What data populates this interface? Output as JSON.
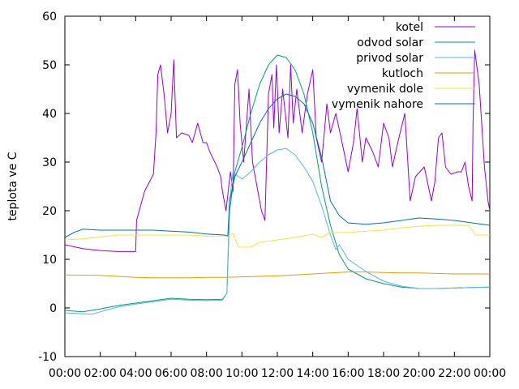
{
  "chart_data": {
    "type": "line",
    "title": "",
    "xlabel": "",
    "ylabel": "teplota ve C",
    "xlim": [
      "00:00",
      "24:00"
    ],
    "ylim": [
      -10,
      60
    ],
    "x_ticks": [
      "00:00",
      "02:00",
      "04:00",
      "06:00",
      "08:00",
      "10:00",
      "12:00",
      "14:00",
      "16:00",
      "18:00",
      "20:00",
      "22:00",
      "00:00"
    ],
    "y_ticks": [
      "-10",
      "0",
      "10",
      "20",
      "30",
      "40",
      "50",
      "60"
    ],
    "grid": false,
    "legend_position": "top-right",
    "x_unit": "hours",
    "series": [
      {
        "name": "kotel",
        "color": "#9400d3",
        "points": [
          [
            0,
            13
          ],
          [
            1,
            12.2
          ],
          [
            2,
            11.8
          ],
          [
            3,
            11.6
          ],
          [
            4,
            11.6
          ],
          [
            4.05,
            18
          ],
          [
            4.5,
            24
          ],
          [
            5,
            27.5
          ],
          [
            5.15,
            36
          ],
          [
            5.25,
            48
          ],
          [
            5.4,
            50
          ],
          [
            5.6,
            44
          ],
          [
            5.8,
            36
          ],
          [
            6,
            40
          ],
          [
            6.15,
            51
          ],
          [
            6.3,
            35
          ],
          [
            6.6,
            36
          ],
          [
            7,
            35.5
          ],
          [
            7.2,
            34
          ],
          [
            7.5,
            38
          ],
          [
            7.8,
            34
          ],
          [
            8,
            34
          ],
          [
            8.2,
            32
          ],
          [
            8.6,
            29
          ],
          [
            8.8,
            27
          ],
          [
            8.9,
            24
          ],
          [
            9.1,
            20
          ],
          [
            9.35,
            28
          ],
          [
            9.5,
            24
          ],
          [
            9.6,
            46
          ],
          [
            9.75,
            49
          ],
          [
            9.9,
            38
          ],
          [
            10.1,
            30
          ],
          [
            10.4,
            45
          ],
          [
            10.6,
            30
          ],
          [
            10.9,
            24
          ],
          [
            11.1,
            20
          ],
          [
            11.3,
            18
          ],
          [
            11.5,
            44
          ],
          [
            11.7,
            48
          ],
          [
            11.8,
            37
          ],
          [
            11.95,
            50
          ],
          [
            12.1,
            36
          ],
          [
            12.3,
            45
          ],
          [
            12.45,
            40
          ],
          [
            12.6,
            35
          ],
          [
            12.75,
            50
          ],
          [
            12.9,
            38
          ],
          [
            13.1,
            45
          ],
          [
            13.4,
            36
          ],
          [
            13.7,
            44
          ],
          [
            14,
            49
          ],
          [
            14.2,
            35
          ],
          [
            14.5,
            30
          ],
          [
            14.8,
            42
          ],
          [
            15,
            36
          ],
          [
            15.3,
            40
          ],
          [
            15.6,
            35
          ],
          [
            16,
            28
          ],
          [
            16.3,
            34
          ],
          [
            16.5,
            41
          ],
          [
            16.8,
            30
          ],
          [
            17,
            35
          ],
          [
            17.4,
            32
          ],
          [
            17.7,
            29
          ],
          [
            18,
            38
          ],
          [
            18.3,
            35
          ],
          [
            18.5,
            29
          ],
          [
            18.8,
            34
          ],
          [
            19.2,
            40
          ],
          [
            19.5,
            22
          ],
          [
            19.8,
            27
          ],
          [
            20.3,
            29
          ],
          [
            20.7,
            22
          ],
          [
            20.9,
            26
          ],
          [
            21.1,
            35
          ],
          [
            21.3,
            36
          ],
          [
            21.5,
            29
          ],
          [
            21.8,
            27.5
          ],
          [
            22.2,
            28
          ],
          [
            22.4,
            28
          ],
          [
            22.6,
            30
          ],
          [
            22.8,
            25
          ],
          [
            23.0,
            22
          ],
          [
            23.05,
            38
          ],
          [
            23.15,
            53
          ],
          [
            23.4,
            46
          ],
          [
            23.7,
            29
          ],
          [
            23.9,
            22
          ],
          [
            24.1,
            18
          ],
          [
            24.5,
            14
          ],
          [
            25,
            12
          ]
        ]
      },
      {
        "name": "odvod solar",
        "color": "#009e73",
        "points": [
          [
            0,
            -0.5
          ],
          [
            1,
            -0.8
          ],
          [
            2,
            -0.2
          ],
          [
            3,
            0.5
          ],
          [
            4,
            1
          ],
          [
            5,
            1.5
          ],
          [
            6,
            2
          ],
          [
            7,
            1.8
          ],
          [
            8,
            1.7
          ],
          [
            8.9,
            1.8
          ],
          [
            9.15,
            3
          ],
          [
            9.3,
            20
          ],
          [
            9.6,
            28
          ],
          [
            10,
            33
          ],
          [
            10.5,
            40
          ],
          [
            11,
            46
          ],
          [
            11.5,
            50
          ],
          [
            12,
            52
          ],
          [
            12.5,
            51.5
          ],
          [
            13,
            49
          ],
          [
            13.5,
            44
          ],
          [
            14,
            36
          ],
          [
            14.5,
            25
          ],
          [
            15,
            17
          ],
          [
            15.5,
            11
          ],
          [
            16,
            8
          ],
          [
            17,
            6
          ],
          [
            18,
            5
          ],
          [
            19,
            4.3
          ],
          [
            20,
            4
          ],
          [
            21,
            4
          ],
          [
            22,
            4.1
          ],
          [
            23,
            4.2
          ],
          [
            24,
            4.3
          ],
          [
            25,
            4.4
          ]
        ]
      },
      {
        "name": "privod solar",
        "color": "#56b4e9",
        "points": [
          [
            0,
            -1
          ],
          [
            1,
            -1.2
          ],
          [
            1.5,
            -1.3
          ],
          [
            2,
            -0.8
          ],
          [
            3,
            0.2
          ],
          [
            4,
            0.8
          ],
          [
            5,
            1.3
          ],
          [
            6,
            1.8
          ],
          [
            7,
            1.6
          ],
          [
            8,
            1.5
          ],
          [
            8.9,
            1.6
          ],
          [
            9.15,
            3
          ],
          [
            9.3,
            22
          ],
          [
            9.5,
            28
          ],
          [
            9.8,
            27
          ],
          [
            10,
            26.5
          ],
          [
            10.5,
            28
          ],
          [
            11,
            30
          ],
          [
            11.5,
            31.5
          ],
          [
            12,
            32.5
          ],
          [
            12.5,
            32.8
          ],
          [
            13,
            31.5
          ],
          [
            13.5,
            29
          ],
          [
            14,
            26
          ],
          [
            14.5,
            21
          ],
          [
            15,
            15
          ],
          [
            15.3,
            12
          ],
          [
            15.5,
            13
          ],
          [
            16,
            10
          ],
          [
            17,
            7.5
          ],
          [
            18,
            5.5
          ],
          [
            19,
            4.5
          ],
          [
            20,
            4
          ],
          [
            21,
            4
          ],
          [
            22,
            4.1
          ],
          [
            23,
            4.2
          ],
          [
            24,
            4.3
          ],
          [
            25,
            4.4
          ]
        ]
      },
      {
        "name": "kutloch",
        "color": "#e69f00",
        "points": [
          [
            0,
            6.8
          ],
          [
            2,
            6.7
          ],
          [
            3,
            6.5
          ],
          [
            4,
            6.3
          ],
          [
            5,
            6.2
          ],
          [
            6,
            6.2
          ],
          [
            7,
            6.2
          ],
          [
            8,
            6.3
          ],
          [
            9,
            6.3
          ],
          [
            10,
            6.4
          ],
          [
            11,
            6.5
          ],
          [
            12,
            6.6
          ],
          [
            13,
            6.8
          ],
          [
            14,
            7.0
          ],
          [
            15,
            7.2
          ],
          [
            16,
            7.4
          ],
          [
            17,
            7.4
          ],
          [
            18,
            7.3
          ],
          [
            19,
            7.2
          ],
          [
            20,
            7.2
          ],
          [
            21,
            7.1
          ],
          [
            22,
            7.0
          ],
          [
            23,
            7.0
          ],
          [
            24,
            7.0
          ],
          [
            25,
            7.0
          ]
        ]
      },
      {
        "name": "vymenik dole",
        "color": "#f0e442",
        "points": [
          [
            0,
            14
          ],
          [
            1,
            14.2
          ],
          [
            2,
            14.6
          ],
          [
            3,
            15
          ],
          [
            4,
            15
          ],
          [
            5,
            15
          ],
          [
            6,
            15
          ],
          [
            7,
            15
          ],
          [
            8,
            14.8
          ],
          [
            9,
            14.8
          ],
          [
            9.2,
            14.9
          ],
          [
            9.5,
            15.3
          ],
          [
            9.8,
            12.5
          ],
          [
            10.5,
            12.5
          ],
          [
            11,
            13.5
          ],
          [
            12,
            14
          ],
          [
            13,
            14.5
          ],
          [
            14,
            15.2
          ],
          [
            14.5,
            14.5
          ],
          [
            15,
            15.5
          ],
          [
            16,
            15.5
          ],
          [
            17,
            15.8
          ],
          [
            18,
            16
          ],
          [
            19,
            16.5
          ],
          [
            20,
            16.8
          ],
          [
            21,
            17
          ],
          [
            22,
            17
          ],
          [
            22.8,
            17
          ],
          [
            23.2,
            15
          ],
          [
            24,
            15
          ],
          [
            25,
            15.5
          ]
        ]
      },
      {
        "name": "vymenik nahore",
        "color": "#0072b2",
        "points": [
          [
            0,
            14.5
          ],
          [
            0.5,
            15.5
          ],
          [
            1,
            16.2
          ],
          [
            2,
            16
          ],
          [
            3,
            16
          ],
          [
            4,
            16
          ],
          [
            5,
            16
          ],
          [
            6,
            15.8
          ],
          [
            7,
            15.6
          ],
          [
            8,
            15.2
          ],
          [
            9,
            15
          ],
          [
            9.2,
            14.8
          ],
          [
            9.3,
            22
          ],
          [
            9.6,
            27
          ],
          [
            10,
            30
          ],
          [
            10.5,
            34
          ],
          [
            11,
            38
          ],
          [
            11.5,
            41
          ],
          [
            12,
            43
          ],
          [
            12.5,
            44
          ],
          [
            13,
            43.5
          ],
          [
            13.5,
            42
          ],
          [
            14,
            38
          ],
          [
            14.5,
            31
          ],
          [
            15,
            22
          ],
          [
            15.5,
            19
          ],
          [
            16,
            17.5
          ],
          [
            17,
            17.2
          ],
          [
            18,
            17.5
          ],
          [
            19,
            18
          ],
          [
            20,
            18.5
          ],
          [
            21,
            18.3
          ],
          [
            22,
            18
          ],
          [
            23,
            17.5
          ],
          [
            24,
            17
          ],
          [
            25,
            16.5
          ]
        ]
      }
    ]
  }
}
